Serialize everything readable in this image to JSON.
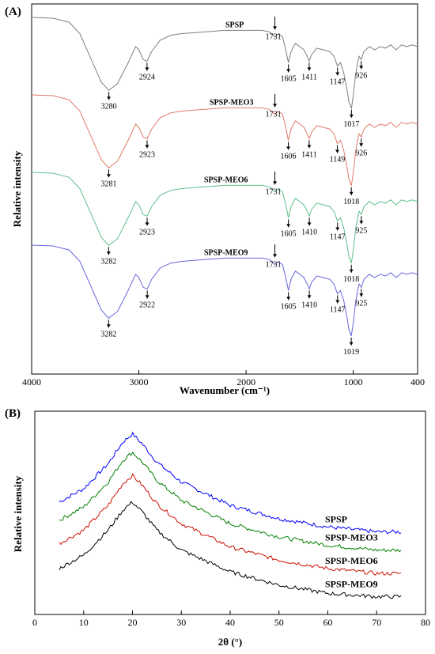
{
  "chart_data": [
    {
      "panel_label": "(A)",
      "type": "line",
      "xlabel": "Wavenumber (cm⁻¹)",
      "ylabel": "Relative intensity",
      "xlim": [
        4000,
        400
      ],
      "x_reversed": true,
      "x_ticks": [
        4000,
        3000,
        2000,
        1000,
        400
      ],
      "colors": {
        "SPSP": "#7f7f7f",
        "SPSP-MEO3": "#e07a6a",
        "SPSP-MEO6": "#5cbf8a",
        "SPSP-MEO9": "#6666dd"
      },
      "series": [
        {
          "name": "SPSP",
          "x": [
            4000,
            3800,
            3650,
            3550,
            3450,
            3350,
            3280,
            3200,
            3100,
            3030,
            3000,
            2960,
            2924,
            2880,
            2800,
            2700,
            2600,
            2400,
            2200,
            2000,
            1850,
            1780,
            1731,
            1700,
            1660,
            1630,
            1605,
            1580,
            1540,
            1500,
            1460,
            1430,
            1411,
            1390,
            1340,
            1280,
            1220,
            1180,
            1147,
            1120,
            1090,
            1060,
            1040,
            1017,
            1000,
            980,
            960,
            945,
            926,
            900,
            850,
            800,
            750,
            700,
            650,
            600,
            550,
            500,
            450,
            400
          ],
          "y": [
            100,
            99.5,
            97,
            90,
            75,
            60,
            55,
            59,
            72,
            82,
            80,
            74,
            73,
            79,
            86,
            89,
            90,
            91,
            92,
            92,
            92,
            91,
            88,
            90,
            88,
            80,
            72,
            79,
            84,
            82,
            80,
            76,
            73,
            77,
            81,
            80,
            79,
            76,
            70,
            72,
            66,
            56,
            48,
            44,
            52,
            64,
            72,
            76,
            74,
            79,
            82,
            80,
            82,
            81,
            83,
            80,
            83,
            82,
            83,
            82
          ]
        },
        {
          "name": "SPSP-MEO3",
          "x": [
            4000,
            3800,
            3650,
            3550,
            3450,
            3350,
            3281,
            3200,
            3100,
            3030,
            3000,
            2960,
            2923,
            2880,
            2800,
            2700,
            2600,
            2400,
            2200,
            2000,
            1850,
            1780,
            1731,
            1700,
            1660,
            1630,
            1606,
            1580,
            1540,
            1500,
            1460,
            1430,
            1411,
            1390,
            1340,
            1280,
            1220,
            1180,
            1149,
            1120,
            1090,
            1060,
            1040,
            1018,
            1000,
            980,
            960,
            945,
            926,
            900,
            850,
            800,
            750,
            700,
            650,
            600,
            550,
            500,
            450,
            400
          ],
          "y": [
            100,
            99.5,
            97,
            90,
            75,
            60,
            55,
            59,
            72,
            82,
            80,
            74,
            73,
            79,
            86,
            89,
            90,
            91,
            92,
            92,
            92,
            91,
            88,
            90,
            88,
            80,
            72,
            79,
            84,
            82,
            80,
            76,
            73,
            77,
            81,
            80,
            79,
            76,
            70,
            72,
            66,
            56,
            48,
            44,
            52,
            64,
            72,
            76,
            74,
            79,
            82,
            80,
            82,
            81,
            83,
            80,
            83,
            82,
            83,
            82
          ]
        },
        {
          "name": "SPSP-MEO6",
          "x": [
            4000,
            3800,
            3650,
            3550,
            3450,
            3350,
            3282,
            3200,
            3100,
            3030,
            3000,
            2960,
            2923,
            2880,
            2800,
            2700,
            2600,
            2400,
            2200,
            2000,
            1850,
            1780,
            1731,
            1700,
            1660,
            1630,
            1605,
            1580,
            1540,
            1500,
            1460,
            1430,
            1410,
            1390,
            1340,
            1280,
            1220,
            1180,
            1147,
            1120,
            1090,
            1060,
            1040,
            1018,
            1000,
            980,
            960,
            945,
            925,
            900,
            850,
            800,
            750,
            700,
            650,
            600,
            550,
            500,
            450,
            400
          ],
          "y": [
            100,
            99.5,
            97,
            90,
            75,
            60,
            55,
            59,
            72,
            82,
            80,
            74,
            73,
            79,
            86,
            89,
            90,
            91,
            92,
            92,
            92,
            91,
            88,
            90,
            88,
            80,
            72,
            79,
            84,
            82,
            80,
            76,
            73,
            77,
            81,
            80,
            79,
            76,
            70,
            72,
            66,
            56,
            48,
            44,
            52,
            64,
            72,
            76,
            74,
            79,
            82,
            80,
            82,
            81,
            83,
            80,
            83,
            82,
            83,
            82
          ]
        },
        {
          "name": "SPSP-MEO9",
          "x": [
            4000,
            3800,
            3650,
            3550,
            3450,
            3350,
            3282,
            3200,
            3100,
            3030,
            3000,
            2960,
            2922,
            2880,
            2800,
            2700,
            2600,
            2400,
            2200,
            2000,
            1850,
            1780,
            1731,
            1700,
            1660,
            1630,
            1605,
            1580,
            1540,
            1500,
            1460,
            1430,
            1410,
            1390,
            1340,
            1280,
            1220,
            1180,
            1147,
            1120,
            1090,
            1060,
            1040,
            1019,
            1000,
            980,
            960,
            945,
            925,
            900,
            850,
            800,
            750,
            700,
            650,
            600,
            550,
            500,
            450,
            400
          ],
          "y": [
            100,
            99.5,
            97,
            90,
            75,
            60,
            55,
            59,
            72,
            82,
            80,
            74,
            73,
            79,
            86,
            89,
            90,
            91,
            92,
            92,
            92,
            91,
            88,
            90,
            88,
            80,
            72,
            79,
            84,
            82,
            80,
            76,
            73,
            77,
            81,
            80,
            79,
            76,
            70,
            72,
            66,
            56,
            48,
            44,
            52,
            64,
            72,
            76,
            74,
            79,
            82,
            80,
            82,
            81,
            83,
            80,
            83,
            82,
            83,
            82
          ]
        }
      ],
      "annotations": [
        {
          "series": "SPSP",
          "peaks": [
            {
              "x": 3280,
              "label": "3280"
            },
            {
              "x": 2924,
              "label": "2924"
            },
            {
              "x": 1731,
              "label": "1731"
            },
            {
              "x": 1605,
              "label": "1605"
            },
            {
              "x": 1411,
              "label": "1411"
            },
            {
              "x": 1147,
              "label": "1147"
            },
            {
              "x": 1017,
              "label": "1017"
            },
            {
              "x": 926,
              "label": "926"
            }
          ]
        },
        {
          "series": "SPSP-MEO3",
          "peaks": [
            {
              "x": 3281,
              "label": "3281"
            },
            {
              "x": 2923,
              "label": "2923"
            },
            {
              "x": 1731,
              "label": "1731"
            },
            {
              "x": 1606,
              "label": "1606"
            },
            {
              "x": 1411,
              "label": "1411"
            },
            {
              "x": 1149,
              "label": "1149"
            },
            {
              "x": 1018,
              "label": "1018"
            },
            {
              "x": 926,
              "label": "926"
            }
          ]
        },
        {
          "series": "SPSP-MEO6",
          "peaks": [
            {
              "x": 3282,
              "label": "3282"
            },
            {
              "x": 2923,
              "label": "2923"
            },
            {
              "x": 1731,
              "label": "1731"
            },
            {
              "x": 1605,
              "label": "1605"
            },
            {
              "x": 1410,
              "label": "1410"
            },
            {
              "x": 1147,
              "label": "1147"
            },
            {
              "x": 1018,
              "label": "1018"
            },
            {
              "x": 925,
              "label": "925"
            }
          ]
        },
        {
          "series": "SPSP-MEO9",
          "peaks": [
            {
              "x": 3282,
              "label": "3282"
            },
            {
              "x": 2922,
              "label": "2922"
            },
            {
              "x": 1731,
              "label": "1731"
            },
            {
              "x": 1605,
              "label": "1605"
            },
            {
              "x": 1410,
              "label": "1410"
            },
            {
              "x": 1147,
              "label": "1147"
            },
            {
              "x": 1019,
              "label": "1019"
            },
            {
              "x": 925,
              "label": "925"
            }
          ]
        }
      ]
    },
    {
      "panel_label": "(B)",
      "type": "line",
      "xlabel": "2θ (°)",
      "ylabel": "Relative intensity",
      "xlim": [
        0,
        80
      ],
      "x_ticks": [
        0,
        10,
        20,
        30,
        40,
        50,
        60,
        70,
        80
      ],
      "colors": {
        "SPSP": "#0000ff",
        "SPSP-MEO3": "#008000",
        "SPSP-MEO6": "#cc1100",
        "SPSP-MEO9": "#000000"
      },
      "series": [
        {
          "name": "SPSP",
          "x": [
            5,
            10,
            15,
            18,
            20,
            22,
            25,
            30,
            40,
            50,
            60,
            70,
            75
          ],
          "y": [
            62,
            70,
            85,
            98,
            103,
            97,
            86,
            74,
            60,
            52,
            47,
            44,
            44
          ]
        },
        {
          "name": "SPSP-MEO3",
          "x": [
            5,
            10,
            15,
            18,
            20,
            22,
            25,
            30,
            40,
            50,
            60,
            70,
            75
          ],
          "y": [
            51,
            59,
            74,
            87,
            92,
            86,
            75,
            63,
            49,
            41,
            36,
            33,
            33
          ]
        },
        {
          "name": "SPSP-MEO6",
          "x": [
            5,
            10,
            15,
            18,
            20,
            22,
            25,
            30,
            40,
            50,
            60,
            70,
            75
          ],
          "y": [
            37,
            45,
            60,
            73,
            78,
            72,
            61,
            49,
            35,
            27,
            22,
            19,
            19
          ]
        },
        {
          "name": "SPSP-MEO9",
          "x": [
            5,
            10,
            15,
            18,
            20,
            22,
            25,
            30,
            40,
            50,
            60,
            70,
            75
          ],
          "y": [
            22,
            30,
            45,
            57,
            62,
            56,
            45,
            33,
            20,
            12,
            7,
            5,
            5
          ]
        }
      ]
    }
  ]
}
